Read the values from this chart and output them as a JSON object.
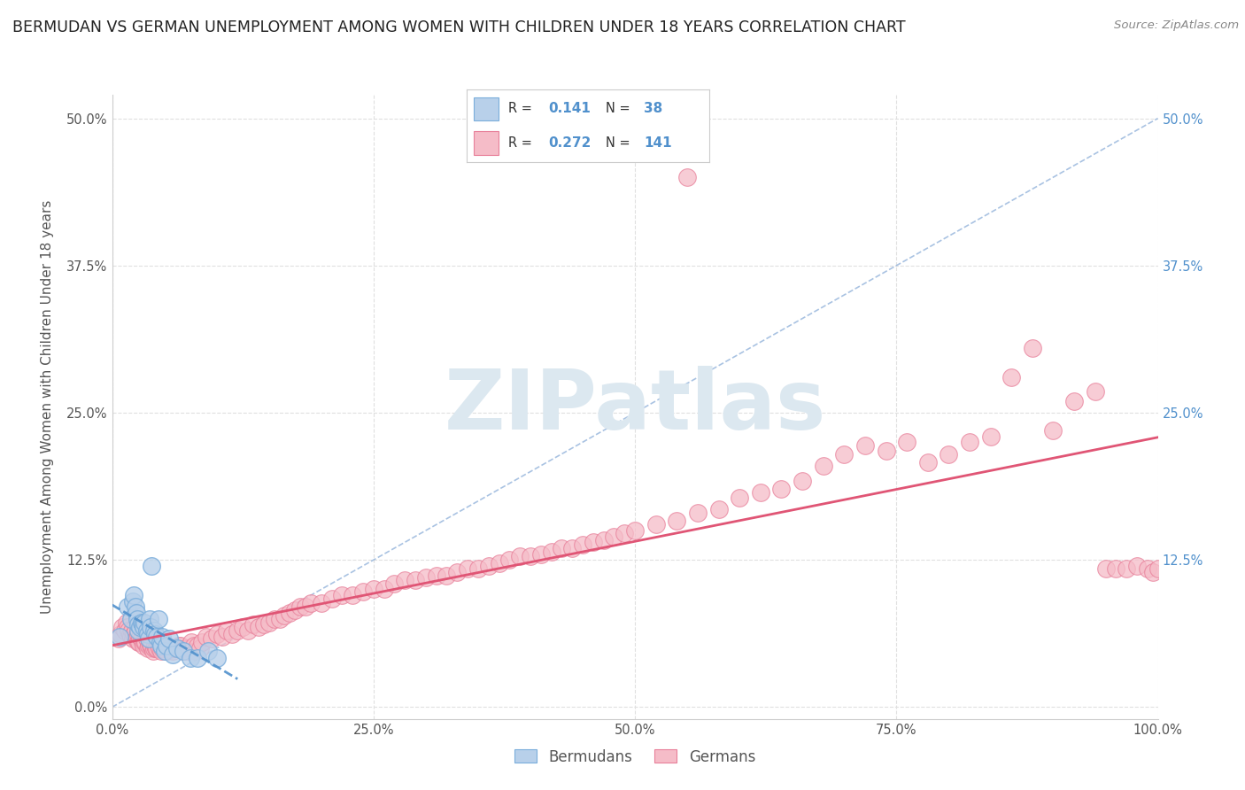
{
  "title": "BERMUDAN VS GERMAN UNEMPLOYMENT AMONG WOMEN WITH CHILDREN UNDER 18 YEARS CORRELATION CHART",
  "source": "Source: ZipAtlas.com",
  "ylabel": "Unemployment Among Women with Children Under 18 years",
  "xlim": [
    0.0,
    1.0
  ],
  "ylim": [
    -0.01,
    0.52
  ],
  "yticks": [
    0.0,
    0.125,
    0.25,
    0.375,
    0.5
  ],
  "ytick_labels_left": [
    "0.0%",
    "12.5%",
    "25.0%",
    "37.5%",
    "50.0%"
  ],
  "ytick_labels_right": [
    "",
    "12.5%",
    "25.0%",
    "37.5%",
    "50.0%"
  ],
  "xticks": [
    0.0,
    0.25,
    0.5,
    0.75,
    1.0
  ],
  "xtick_labels": [
    "0.0%",
    "25.0%",
    "50.0%",
    "75.0%",
    "100.0%"
  ],
  "legend_blue_R": "0.141",
  "legend_blue_N": "38",
  "legend_pink_R": "0.272",
  "legend_pink_N": "141",
  "legend_label_blue": "Bermudans",
  "legend_label_pink": "Germans",
  "blue_fill": "#b8d0ea",
  "blue_edge": "#7aaddb",
  "pink_fill": "#f5bcc8",
  "pink_edge": "#e8809a",
  "reg_blue_color": "#5090cc",
  "reg_pink_color": "#e05575",
  "diag_color": "#9ab8dd",
  "grid_color": "#e0e0e0",
  "grid_style": "--",
  "title_color": "#222222",
  "source_color": "#888888",
  "ylabel_color": "#555555",
  "watermark_text": "ZIPatlas",
  "watermark_color": "#dce8f0",
  "background": "#ffffff",
  "bermudans_x": [
    0.007,
    0.015,
    0.018,
    0.02,
    0.021,
    0.022,
    0.023,
    0.024,
    0.025,
    0.025,
    0.027,
    0.028,
    0.029,
    0.03,
    0.031,
    0.033,
    0.034,
    0.035,
    0.036,
    0.037,
    0.038,
    0.04,
    0.041,
    0.043,
    0.044,
    0.046,
    0.047,
    0.048,
    0.05,
    0.052,
    0.055,
    0.058,
    0.062,
    0.068,
    0.075,
    0.082,
    0.092,
    0.1
  ],
  "bermudans_y": [
    0.06,
    0.085,
    0.075,
    0.09,
    0.095,
    0.085,
    0.08,
    0.075,
    0.065,
    0.07,
    0.068,
    0.072,
    0.07,
    0.068,
    0.072,
    0.065,
    0.062,
    0.058,
    0.075,
    0.068,
    0.12,
    0.065,
    0.062,
    0.06,
    0.075,
    0.055,
    0.052,
    0.06,
    0.048,
    0.052,
    0.058,
    0.045,
    0.05,
    0.048,
    0.042,
    0.042,
    0.048,
    0.042
  ],
  "germans_x": [
    0.006,
    0.008,
    0.01,
    0.012,
    0.014,
    0.015,
    0.016,
    0.017,
    0.018,
    0.019,
    0.02,
    0.021,
    0.022,
    0.022,
    0.023,
    0.024,
    0.025,
    0.025,
    0.026,
    0.027,
    0.028,
    0.029,
    0.03,
    0.031,
    0.032,
    0.033,
    0.034,
    0.035,
    0.036,
    0.037,
    0.038,
    0.039,
    0.04,
    0.041,
    0.042,
    0.043,
    0.044,
    0.045,
    0.047,
    0.048,
    0.05,
    0.052,
    0.054,
    0.056,
    0.058,
    0.06,
    0.062,
    0.064,
    0.066,
    0.068,
    0.07,
    0.072,
    0.074,
    0.076,
    0.078,
    0.08,
    0.082,
    0.084,
    0.086,
    0.09,
    0.095,
    0.1,
    0.105,
    0.11,
    0.115,
    0.12,
    0.125,
    0.13,
    0.135,
    0.14,
    0.145,
    0.15,
    0.155,
    0.16,
    0.165,
    0.17,
    0.175,
    0.18,
    0.185,
    0.19,
    0.2,
    0.21,
    0.22,
    0.23,
    0.24,
    0.25,
    0.26,
    0.27,
    0.28,
    0.29,
    0.3,
    0.31,
    0.32,
    0.33,
    0.34,
    0.35,
    0.36,
    0.37,
    0.38,
    0.39,
    0.4,
    0.41,
    0.42,
    0.43,
    0.44,
    0.45,
    0.46,
    0.47,
    0.48,
    0.49,
    0.5,
    0.52,
    0.54,
    0.56,
    0.58,
    0.6,
    0.62,
    0.64,
    0.66,
    0.68,
    0.7,
    0.72,
    0.74,
    0.76,
    0.78,
    0.8,
    0.82,
    0.84,
    0.86,
    0.88,
    0.9,
    0.92,
    0.94,
    0.95,
    0.96,
    0.97,
    0.98,
    0.99,
    0.995,
    1.0,
    0.55
  ],
  "germans_y": [
    0.058,
    0.062,
    0.068,
    0.065,
    0.072,
    0.068,
    0.065,
    0.062,
    0.06,
    0.065,
    0.058,
    0.062,
    0.06,
    0.065,
    0.058,
    0.06,
    0.055,
    0.062,
    0.055,
    0.06,
    0.058,
    0.055,
    0.052,
    0.055,
    0.055,
    0.058,
    0.05,
    0.052,
    0.055,
    0.052,
    0.052,
    0.048,
    0.05,
    0.052,
    0.05,
    0.05,
    0.052,
    0.05,
    0.048,
    0.05,
    0.05,
    0.048,
    0.05,
    0.05,
    0.048,
    0.05,
    0.05,
    0.052,
    0.052,
    0.048,
    0.05,
    0.048,
    0.05,
    0.055,
    0.052,
    0.048,
    0.052,
    0.05,
    0.055,
    0.06,
    0.058,
    0.062,
    0.06,
    0.065,
    0.062,
    0.065,
    0.068,
    0.065,
    0.07,
    0.068,
    0.07,
    0.072,
    0.075,
    0.075,
    0.078,
    0.08,
    0.082,
    0.085,
    0.085,
    0.088,
    0.088,
    0.092,
    0.095,
    0.095,
    0.098,
    0.1,
    0.1,
    0.105,
    0.108,
    0.108,
    0.11,
    0.112,
    0.112,
    0.115,
    0.118,
    0.118,
    0.12,
    0.122,
    0.125,
    0.128,
    0.128,
    0.13,
    0.132,
    0.135,
    0.135,
    0.138,
    0.14,
    0.142,
    0.145,
    0.148,
    0.15,
    0.155,
    0.158,
    0.165,
    0.168,
    0.178,
    0.182,
    0.185,
    0.192,
    0.205,
    0.215,
    0.222,
    0.218,
    0.225,
    0.208,
    0.215,
    0.225,
    0.23,
    0.28,
    0.305,
    0.235,
    0.26,
    0.268,
    0.118,
    0.118,
    0.118,
    0.12,
    0.118,
    0.115,
    0.118,
    0.45
  ]
}
